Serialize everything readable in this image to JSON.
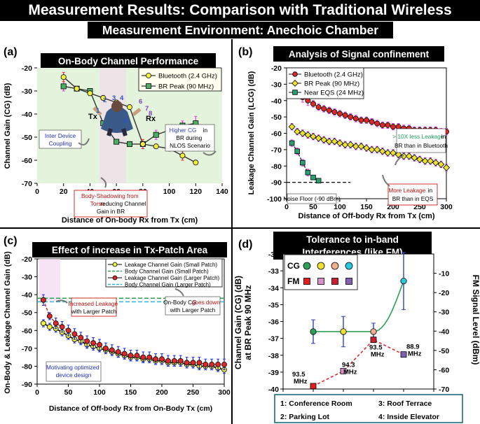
{
  "header": {
    "title": "Measurement Results: Comparison with Traditional Wireless",
    "subtitle": "Measurement Environment: Anechoic Chamber"
  },
  "chart_data": [
    {
      "panel": "(a)",
      "type": "line",
      "title": "On-Body Channel Performance",
      "xlabel": "Distance of On-body Rx from Tx (cm)",
      "ylabel": "Channel Gain (CG) (dB)",
      "xlim": [
        0,
        140
      ],
      "ylim": [
        -70,
        -20
      ],
      "xticks": [
        0,
        20,
        40,
        60,
        80,
        100,
        120,
        140
      ],
      "yticks": [
        -70,
        -60,
        -50,
        -40,
        -30,
        -20
      ],
      "series": [
        {
          "name": "Bluetooth (2.4 GHz)",
          "color": "#f0f03c",
          "marker": "circle",
          "x": [
            20,
            30,
            40,
            50,
            60,
            70,
            80,
            90,
            100,
            110,
            120
          ],
          "y": [
            -24,
            -29,
            -31,
            -33,
            -35,
            -37,
            -53,
            -54,
            -55,
            -58,
            -61
          ],
          "err": [
            2,
            1,
            1,
            1,
            1,
            1,
            2,
            1,
            1,
            2,
            1
          ]
        },
        {
          "name": "BR Peak (90 MHz)",
          "color": "#4cae64",
          "marker": "square",
          "x": [
            20,
            30,
            40,
            50,
            60,
            70,
            80,
            90,
            100,
            110,
            120
          ],
          "y": [
            -28,
            -29,
            -30,
            -44,
            -52,
            -53,
            -53,
            -49,
            -47,
            -45,
            -44
          ],
          "err": [
            2,
            1,
            1,
            1,
            1,
            1,
            1,
            2,
            2,
            2,
            3
          ]
        }
      ],
      "annotations": {
        "tx": "Tx",
        "rx": "Rx",
        "positions": [
          "1",
          "2",
          "3",
          "4",
          "5",
          "6",
          "7",
          "8"
        ],
        "coupling": "Inter Device Coupling",
        "shadow_1": "Body-Shadowing from",
        "shadow_2a": "Torso",
        "shadow_2b": "reducing Channel",
        "shadow_3": "Gain in BR",
        "higher_1a": "Higher CG",
        "higher_1b": "in",
        "higher_2": "BR during",
        "higher_3": "NLOS Scenario"
      }
    },
    {
      "panel": "(b)",
      "type": "line",
      "title": "Analysis of Signal confinement",
      "xlabel": "Distance of Off-body Rx from Tx (cm)",
      "ylabel": "Leakage Channel Gain (LCG) (dB)",
      "xlim": [
        0,
        300
      ],
      "ylim": [
        -100,
        -20
      ],
      "xticks": [
        0,
        50,
        100,
        150,
        200,
        250,
        300
      ],
      "yticks": [
        -100,
        -90,
        -80,
        -70,
        -60,
        -50,
        -40,
        -30,
        -20
      ],
      "series": [
        {
          "name": "Bluetooth (2.4 GHz)",
          "color": "#dc2828",
          "marker": "circle",
          "x": [
            10,
            20,
            30,
            40,
            50,
            60,
            70,
            80,
            90,
            100,
            110,
            120,
            130,
            140,
            150,
            160,
            170,
            180,
            190,
            200,
            210,
            220,
            230,
            240,
            250,
            260,
            270,
            280,
            290,
            300
          ],
          "y": [
            -29,
            -34,
            -38,
            -40,
            -42,
            -44,
            -45,
            -46,
            -47,
            -48,
            -49,
            -50,
            -51,
            -52,
            -52,
            -53,
            -54,
            -55,
            -55,
            -56,
            -56,
            -57,
            -57,
            -58,
            -58,
            -58,
            -58,
            -58,
            -59,
            -59
          ],
          "err": [
            3,
            3,
            3,
            3,
            2,
            2,
            2,
            2,
            2,
            2,
            2,
            2,
            2,
            2,
            2,
            2,
            2,
            2,
            2,
            2,
            2,
            2,
            2,
            2,
            2,
            2,
            2,
            2,
            2,
            2
          ]
        },
        {
          "name": "BR Peak (90 MHz)",
          "color": "#f0e030",
          "marker": "diamond",
          "x": [
            10,
            20,
            30,
            40,
            50,
            60,
            70,
            80,
            90,
            100,
            110,
            120,
            130,
            140,
            150,
            160,
            170,
            180,
            190,
            200,
            210,
            220,
            230,
            240,
            250,
            260,
            270,
            280,
            290,
            300
          ],
          "y": [
            -56,
            -59,
            -60,
            -61,
            -62,
            -63,
            -64,
            -65,
            -65,
            -66,
            -67,
            -67,
            -68,
            -68,
            -69,
            -70,
            -70,
            -71,
            -72,
            -72,
            -73,
            -74,
            -74,
            -75,
            -76,
            -77,
            -77,
            -78,
            -79,
            -81
          ],
          "err": [
            2,
            2,
            2,
            2,
            2,
            2,
            2,
            2,
            2,
            2,
            2,
            2,
            2,
            2,
            2,
            2,
            2,
            2,
            2,
            2,
            2,
            2,
            2,
            2,
            2,
            2,
            2,
            2,
            2,
            2
          ]
        },
        {
          "name": "Near EQS (24 MHz)",
          "color": "#28a070",
          "marker": "square",
          "x": [
            10,
            20,
            30,
            40,
            50,
            60
          ],
          "y": [
            -66,
            -71,
            -78,
            -84,
            -87,
            -89
          ],
          "err": [
            2,
            2,
            2,
            2,
            1,
            1
          ]
        }
      ],
      "annotations": {
        "noise": "Noise Floor (-90 dBm)",
        "noise_level": -90,
        "less_1a": "> 10X less Leakage",
        "less_1b": "in",
        "less_2": "BR than in Bluetooth",
        "more_1a": "More Leakage",
        "more_1b": "in",
        "more_2": "BR than in EQS"
      }
    },
    {
      "panel": "(c)",
      "type": "line",
      "title": "Effect of increase in Tx-Patch Area",
      "xlabel": "Distance of Off-body Rx from On-Body Tx (cm)",
      "ylabel": "On-Body & Leakage Channel Gain (dB)",
      "xlim": [
        0,
        300
      ],
      "ylim": [
        -90,
        -20
      ],
      "xticks": [
        0,
        50,
        100,
        150,
        200,
        250,
        300
      ],
      "yticks": [
        -90,
        -80,
        -70,
        -60,
        -50,
        -40,
        -30,
        -20
      ],
      "series": [
        {
          "name": "Leakage Channel Gain (Small Patch)",
          "color": "#f0f03c",
          "marker": "circle",
          "x": [
            10,
            20,
            30,
            40,
            50,
            60,
            70,
            80,
            90,
            100,
            110,
            120,
            130,
            140,
            150,
            160,
            170,
            180,
            190,
            200,
            210,
            220,
            230,
            240,
            250,
            260,
            270,
            280,
            290,
            300
          ],
          "y": [
            -56,
            -58,
            -59,
            -61,
            -63,
            -65,
            -66,
            -68,
            -69,
            -70,
            -71,
            -72,
            -73,
            -74,
            -75,
            -75,
            -76,
            -76,
            -77,
            -77,
            -78,
            -78,
            -78,
            -79,
            -79,
            -80,
            -80,
            -80,
            -81,
            -82
          ],
          "err": [
            2,
            2,
            2,
            2,
            2,
            2,
            2,
            2,
            2,
            2,
            2,
            2,
            2,
            2,
            2,
            2,
            2,
            2,
            2,
            2,
            2,
            2,
            2,
            2,
            2,
            2,
            2,
            2,
            2,
            2
          ]
        },
        {
          "name": "Body Channel Gain (Small Patch)",
          "color": "#2ca05a",
          "dash": true,
          "y": -42
        },
        {
          "name": "Leakage Channel Gain (Larger Patch)",
          "color": "#dc2828",
          "marker": "circle",
          "x": [
            10,
            20,
            30,
            40,
            50,
            60,
            70,
            80,
            90,
            100,
            110,
            120,
            130,
            140,
            150,
            160,
            170,
            180,
            190,
            200,
            210,
            220,
            230,
            240,
            250,
            260,
            270,
            280,
            290,
            300
          ],
          "y": [
            -43,
            -52,
            -56,
            -58,
            -60,
            -62,
            -64,
            -66,
            -67,
            -68,
            -70,
            -71,
            -72,
            -73,
            -74,
            -74,
            -75,
            -75,
            -76,
            -76,
            -77,
            -77,
            -77,
            -78,
            -78,
            -78,
            -79,
            -79,
            -79,
            -79
          ],
          "err": [
            3,
            2,
            3,
            3,
            3,
            3,
            3,
            3,
            3,
            3,
            3,
            3,
            3,
            3,
            3,
            3,
            3,
            3,
            3,
            3,
            3,
            3,
            3,
            3,
            3,
            3,
            3,
            3,
            3,
            3
          ]
        },
        {
          "name": "Body Channel Gain (Larger Patch)",
          "color": "#28b4dc",
          "dash": true,
          "y": -44
        }
      ],
      "annotations": {
        "inc_1": "Increased Leakage",
        "inc_2": "with Larger Patch",
        "down_1a": "On-Body CG",
        "down_1b": "goes down",
        "down_2": "with Larger Patch",
        "mot_1": "Motivating optimized",
        "mot_2": "device design"
      }
    },
    {
      "panel": "(d)",
      "type": "scatter",
      "title_1": "Tolerance to in-band",
      "title_2": "Interferences (like FM)",
      "xlabel": "Measurement Environment",
      "ylabel_1": "Channel Gain (CG) (dB)",
      "ylabel_2": "at BR Peak 90 MHz",
      "y2label": "FM Signal Level (dBm)",
      "xlim": [
        0,
        5
      ],
      "ylim": [
        -40,
        -32
      ],
      "y2lim": [
        -70,
        0
      ],
      "xticks": [
        0,
        1,
        2,
        3,
        4,
        5
      ],
      "yticks": [
        -40,
        -39,
        -38,
        -37,
        -36,
        -35,
        -34,
        -33,
        -32
      ],
      "y2ticks": [
        -70,
        -60,
        -50,
        -40,
        -30,
        -20,
        -10
      ],
      "series": [
        {
          "name": "CG",
          "x": [
            1,
            2,
            3,
            4
          ],
          "y": [
            -36.6,
            -36.6,
            -36.6,
            -33.6
          ],
          "err": [
            0.7,
            0.9,
            0.5,
            1.7
          ],
          "colors": [
            "#2ca05a",
            "#f0e030",
            "#f0b090",
            "#28c8dc"
          ],
          "line_color": "#2ca05a"
        },
        {
          "name": "FM",
          "x": [
            1,
            2,
            3,
            4
          ],
          "y": [
            -68.5,
            -60.7,
            -44.5,
            -52.1
          ],
          "colors": [
            "#e02020",
            "#d890c8",
            "#c82030",
            "#8060b0"
          ],
          "line_color": "#e02020"
        }
      ],
      "fm_labels": [
        "93.5",
        "94.3",
        "93.5",
        "88.9"
      ],
      "fm_unit": "MHz",
      "legend_environments": [
        "1: Conference Room",
        "3: Roof Terrace",
        "2: Parking Lot",
        "4: Inside Elevator"
      ]
    }
  ]
}
